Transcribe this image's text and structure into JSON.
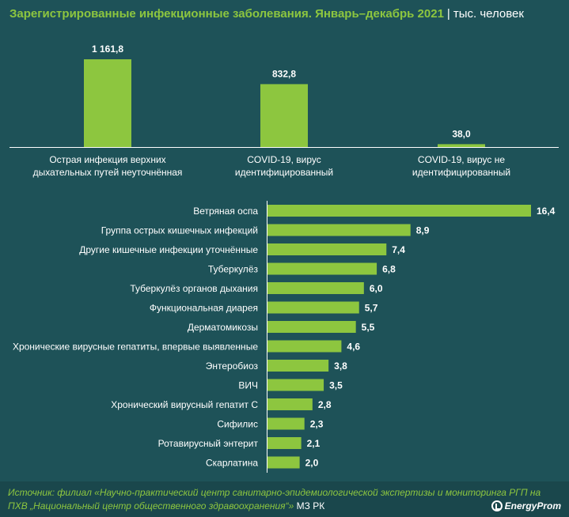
{
  "header": {
    "title": "Зарегистрированные инфекционные заболевания. Январь–декабрь 2021",
    "separator": "|",
    "unit": "тыс. человек"
  },
  "chart_data": [
    {
      "type": "bar",
      "categories": [
        [
          "Острая инфекция верхних",
          "дыхательных путей неуточнённая"
        ],
        [
          "COVID-19, вирус",
          "идентифицированный"
        ],
        [
          "COVID-19, вирус не",
          "идентифицированный"
        ]
      ],
      "values": [
        1161.8,
        832.8,
        38.0
      ],
      "value_labels": [
        "1 161,8",
        "832,8",
        "38,0"
      ],
      "color": "#8dc63f"
    },
    {
      "type": "bar",
      "orientation": "horizontal",
      "categories": [
        "Ветряная оспа",
        "Группа острых кишечных инфекций",
        "Другие кишечные инфекции уточнённые",
        "Туберкулёз",
        "Туберкулёз органов дыхания",
        "Функциональная диарея",
        "Дерматомикозы",
        "Хронические вирусные гепатиты, впервые выявленные",
        "Энтеробиоз",
        "ВИЧ",
        "Хронический вирусный гепатит С",
        "Сифилис",
        "Ротавирусный энтерит",
        "Скарлатина"
      ],
      "values": [
        16.4,
        8.9,
        7.4,
        6.8,
        6.0,
        5.7,
        5.5,
        4.6,
        3.8,
        3.5,
        2.8,
        2.3,
        2.1,
        2.0
      ],
      "value_labels": [
        "16,4",
        "8,9",
        "7,4",
        "6,8",
        "6,0",
        "5,7",
        "5,5",
        "4,6",
        "3,8",
        "3,5",
        "2,8",
        "2,3",
        "2,1",
        "2,0"
      ],
      "color": "#8dc63f"
    }
  ],
  "footer": {
    "source_prefix": "Источник: филиал «Научно-практический центр санитарно-эпидемиологической экспертизы и мониторинга РГП на",
    "source_org": "ПХВ „Национальный центр общественного здравоохранения“»",
    "source_tail": "МЗ РК",
    "logo_text": "EnergyProm",
    "logo_icon": "energyprom-logo-icon"
  }
}
